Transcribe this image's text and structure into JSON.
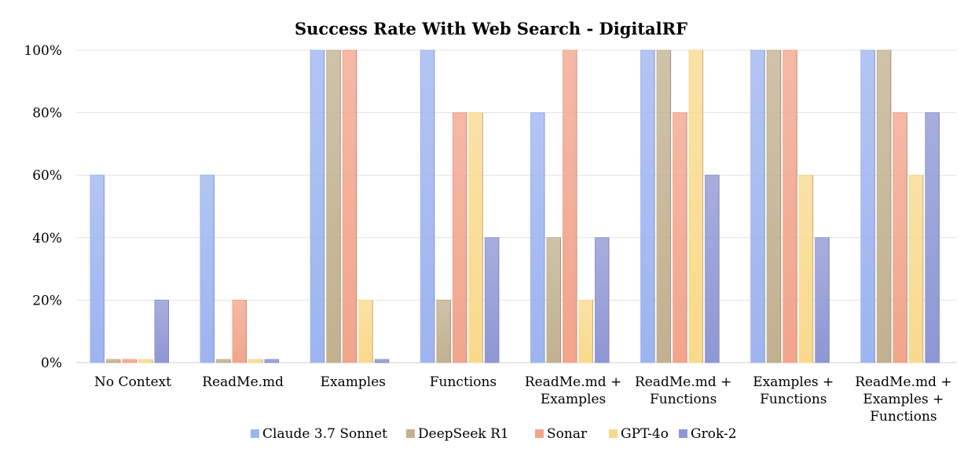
{
  "chart_data": {
    "type": "bar",
    "title": "Success Rate With Web Search - DigitalRF",
    "xlabel": "",
    "ylabel": "",
    "ylim": [
      0,
      100
    ],
    "y_ticks": [
      "0%",
      "20%",
      "40%",
      "60%",
      "80%",
      "100%"
    ],
    "y_tick_values": [
      0,
      20,
      40,
      60,
      80,
      100
    ],
    "grid": true,
    "legend_position": "bottom",
    "categories": [
      [
        "No Context"
      ],
      [
        "ReadMe.md"
      ],
      [
        "Examples"
      ],
      [
        "Functions"
      ],
      [
        "ReadMe.md +",
        "Examples"
      ],
      [
        "ReadMe.md +",
        "Functions"
      ],
      [
        "Examples +",
        "Functions"
      ],
      [
        "ReadMe.md +",
        "Examples +",
        "Functions"
      ]
    ],
    "series": [
      {
        "name": "Claude 3.7 Sonnet",
        "color": "#9db4f0",
        "values": [
          60,
          60,
          100,
          100,
          80,
          100,
          100,
          100
        ]
      },
      {
        "name": "DeepSeek R1",
        "color": "#c2b190",
        "values": [
          1,
          1,
          100,
          20,
          40,
          100,
          100,
          100
        ]
      },
      {
        "name": "Sonar",
        "color": "#f2a58c",
        "values": [
          1,
          20,
          100,
          80,
          100,
          80,
          100,
          80
        ]
      },
      {
        "name": "GPT-4o",
        "color": "#f9d98c",
        "values": [
          1,
          1,
          20,
          80,
          20,
          100,
          60,
          60
        ]
      },
      {
        "name": "Grok-2",
        "color": "#8e97d4",
        "values": [
          20,
          1,
          1,
          40,
          40,
          60,
          40,
          80
        ]
      }
    ]
  }
}
